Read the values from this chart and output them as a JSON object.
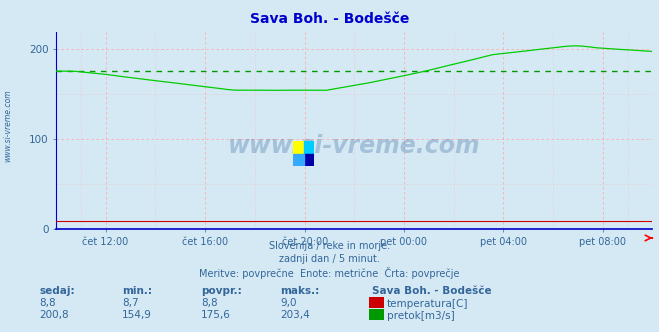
{
  "title": "Sava Boh. - Bodešče",
  "bg_color": "#d5e9f5",
  "plot_bg_color": "#d5e9f5",
  "grid_color_major": "#ffaaaa",
  "x_labels": [
    "čet 12:00",
    "čet 16:00",
    "čet 20:00",
    "pet 00:00",
    "pet 04:00",
    "pet 08:00"
  ],
  "x_tick_fracs": [
    0.083,
    0.25,
    0.417,
    0.583,
    0.75,
    0.917
  ],
  "y_min": 0,
  "y_max": 220,
  "avg_line_value": 175.6,
  "avg_line_color": "#009900",
  "flow_color": "#00cc00",
  "temp_color": "#cc0000",
  "title_color": "#0000cc",
  "axis_color": "#0000cc",
  "tick_color": "#336699",
  "watermark_color": "#336699",
  "footer_color": "#336699",
  "footer_lines": [
    "Slovenija / reke in morje.",
    "zadnji dan / 5 minut.",
    "Meritve: povprečne  Enote: metrične  Črta: povprečje"
  ],
  "legend_title": "Sava Boh. - Bodešče",
  "legend_items": [
    {
      "label": "temperatura[C]",
      "color": "#cc0000"
    },
    {
      "label": "pretok[m3/s]",
      "color": "#009900"
    }
  ],
  "stats_headers": [
    "sedaj:",
    "min.:",
    "povpr.:",
    "maks.:"
  ],
  "stats_temp": [
    "8,8",
    "8,7",
    "8,8",
    "9,0"
  ],
  "stats_flow": [
    "200,8",
    "154,9",
    "175,6",
    "203,4"
  ],
  "sidebar_text": "www.si-vreme.com",
  "n_points": 288
}
